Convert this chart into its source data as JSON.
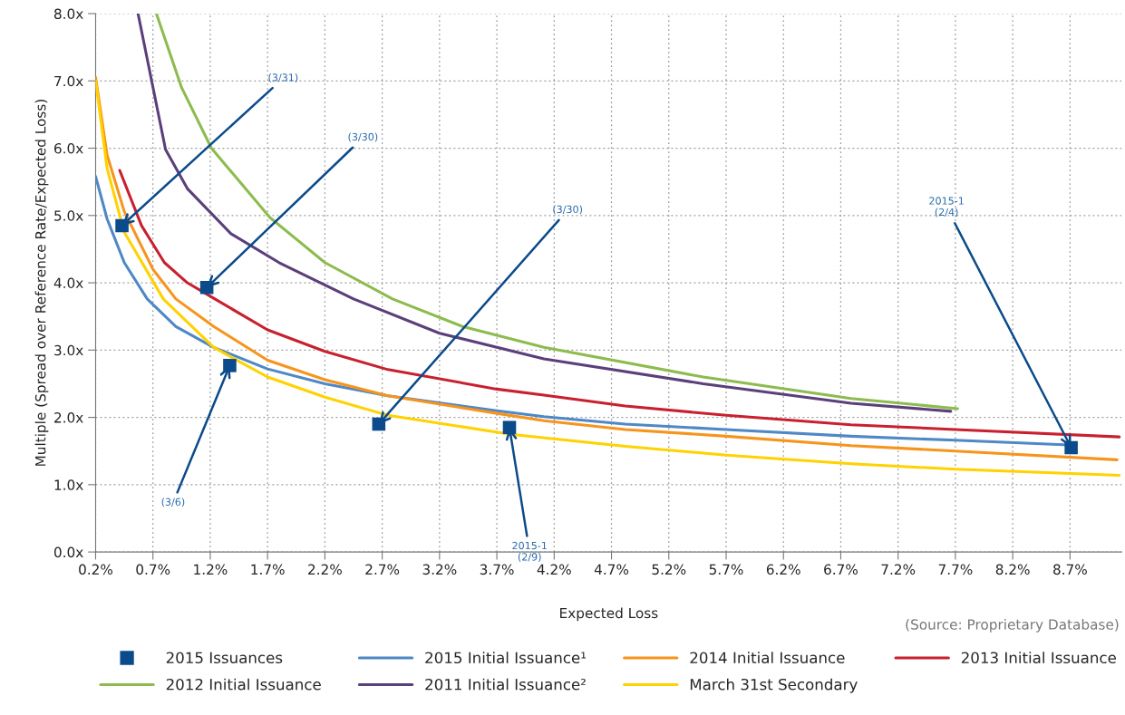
{
  "chart_data": {
    "type": "line",
    "xlabel": "Expected Loss",
    "ylabel": "Multiple (Spread over Reference Rate/Expected Loss)",
    "xlim": [
      0.2,
      9.15
    ],
    "ylim": [
      0,
      8
    ],
    "xticks": [
      {
        "value": 0.2,
        "label": "0.2%"
      },
      {
        "value": 0.7,
        "label": "0.7%"
      },
      {
        "value": 1.2,
        "label": "1.2%"
      },
      {
        "value": 1.7,
        "label": "1.7%"
      },
      {
        "value": 2.2,
        "label": "2.2%"
      },
      {
        "value": 2.7,
        "label": "2.7%"
      },
      {
        "value": 3.2,
        "label": "3.2%"
      },
      {
        "value": 3.7,
        "label": "3.7%"
      },
      {
        "value": 4.2,
        "label": "4.2%"
      },
      {
        "value": 4.7,
        "label": "4.7%"
      },
      {
        "value": 5.2,
        "label": "5.2%"
      },
      {
        "value": 5.7,
        "label": "5.7%"
      },
      {
        "value": 6.2,
        "label": "6.2%"
      },
      {
        "value": 6.7,
        "label": "6.7%"
      },
      {
        "value": 7.2,
        "label": "7.2%"
      },
      {
        "value": 7.7,
        "label": "7.7%"
      },
      {
        "value": 8.2,
        "label": "8.2%"
      },
      {
        "value": 8.7,
        "label": "8.7%"
      }
    ],
    "yticks": [
      {
        "value": 0,
        "label": "0.0x"
      },
      {
        "value": 1,
        "label": "1.0x"
      },
      {
        "value": 2,
        "label": "2.0x"
      },
      {
        "value": 3,
        "label": "3.0x"
      },
      {
        "value": 4,
        "label": "4.0x"
      },
      {
        "value": 5,
        "label": "5.0x"
      },
      {
        "value": 6,
        "label": "6.0x"
      },
      {
        "value": 7,
        "label": "7.0x"
      },
      {
        "value": 8,
        "label": "8.0x"
      }
    ],
    "grid": true,
    "legend": "bottom",
    "series": [
      {
        "name": "2015 Issuances",
        "type": "scatter",
        "marker": "square",
        "color": "#0b4a8b",
        "x": [
          0.43,
          1.17,
          1.37,
          2.67,
          3.81,
          8.71
        ],
        "values": [
          4.85,
          3.93,
          2.77,
          1.9,
          1.85,
          1.55
        ]
      },
      {
        "name": "2015 Initial Issuance¹",
        "color": "#4f88c6",
        "x": [
          0.2,
          0.3,
          0.45,
          0.65,
          0.9,
          1.23,
          1.7,
          2.2,
          2.75,
          3.7,
          4.11,
          4.82,
          5.7,
          6.79,
          7.7,
          8.69
        ],
        "values": [
          5.58,
          4.95,
          4.3,
          3.76,
          3.35,
          3.04,
          2.72,
          2.5,
          2.32,
          2.1,
          2.01,
          1.9,
          1.82,
          1.72,
          1.66,
          1.59
        ]
      },
      {
        "name": "2014 Initial Issuance",
        "color": "#f7941d",
        "x": [
          0.2,
          0.3,
          0.45,
          0.7,
          0.9,
          1.23,
          1.7,
          2.2,
          2.75,
          3.7,
          4.11,
          4.82,
          5.7,
          6.79,
          7.7,
          9.11
        ],
        "values": [
          7.05,
          5.9,
          5.06,
          4.2,
          3.76,
          3.35,
          2.85,
          2.56,
          2.32,
          2.06,
          1.95,
          1.82,
          1.72,
          1.58,
          1.5,
          1.37
        ]
      },
      {
        "name": "2013 Initial Issuance",
        "color": "#c8202f",
        "x": [
          0.41,
          0.6,
          0.8,
          1.0,
          1.23,
          1.7,
          2.2,
          2.75,
          3.7,
          4.11,
          4.82,
          5.7,
          6.79,
          7.7,
          9.13
        ],
        "values": [
          5.67,
          4.85,
          4.3,
          4.0,
          3.77,
          3.3,
          2.98,
          2.71,
          2.42,
          2.33,
          2.17,
          2.03,
          1.89,
          1.82,
          1.71
        ]
      },
      {
        "name": "2012 Initial Issuance",
        "color": "#8dbb4f",
        "x": [
          0.73,
          0.95,
          1.21,
          1.72,
          2.2,
          2.79,
          3.4,
          4.11,
          5.5,
          6.79,
          7.72
        ],
        "values": [
          8.0,
          6.9,
          6.0,
          4.97,
          4.3,
          3.76,
          3.35,
          3.04,
          2.6,
          2.28,
          2.13
        ]
      },
      {
        "name": "2011 Initial Issuance²",
        "color": "#5b3f7a",
        "x": [
          0.57,
          0.81,
          1.0,
          1.38,
          1.8,
          2.45,
          3.2,
          4.11,
          5.5,
          6.79,
          7.66
        ],
        "values": [
          8.0,
          5.98,
          5.4,
          4.73,
          4.3,
          3.76,
          3.25,
          2.87,
          2.5,
          2.21,
          2.09
        ]
      },
      {
        "name": "March 31st Secondary",
        "color": "#ffd200",
        "x": [
          0.2,
          0.3,
          0.45,
          0.79,
          1.23,
          1.7,
          2.2,
          2.75,
          3.82,
          4.82,
          5.7,
          6.79,
          7.7,
          9.13
        ],
        "values": [
          7.0,
          5.7,
          4.75,
          3.76,
          3.04,
          2.6,
          2.3,
          2.03,
          1.75,
          1.57,
          1.44,
          1.31,
          1.23,
          1.14
        ]
      }
    ],
    "annotations": [
      {
        "text": "(3/31)",
        "x": 0.43,
        "y": 4.85
      },
      {
        "text": "(3/30)",
        "x": 1.17,
        "y": 3.93
      },
      {
        "text": "(3/30)",
        "x": 2.67,
        "y": 1.9
      },
      {
        "text": "2015-1\n(2/4)",
        "x": 8.71,
        "y": 1.55
      },
      {
        "text": "(3/6)",
        "x": 1.37,
        "y": 2.77
      },
      {
        "text": "2015-1\n(2/9)",
        "x": 3.81,
        "y": 1.85
      },
      "(Source: Proprietary Database)"
    ]
  }
}
